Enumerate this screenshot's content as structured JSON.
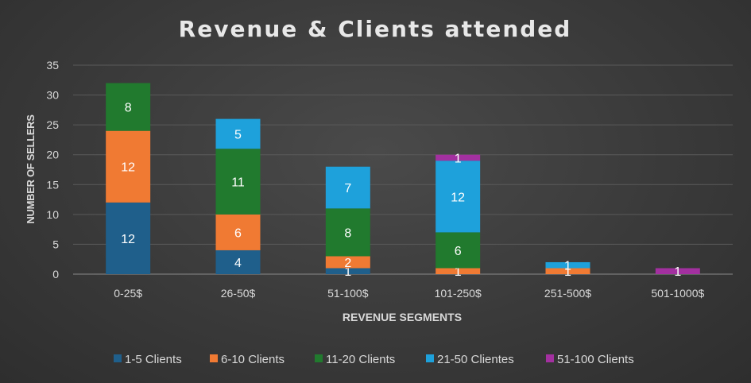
{
  "chart_data": {
    "type": "bar",
    "stacked": true,
    "title": "Revenue & Clients attended",
    "xlabel": "REVENUE SEGMENTS",
    "ylabel": "NUMBER OF SELLERS",
    "ylim": [
      0,
      35
    ],
    "yticks": [
      0,
      5,
      10,
      15,
      20,
      25,
      30,
      35
    ],
    "grid": true,
    "legend_position": "bottom",
    "categories": [
      "0-25$",
      "26-50$",
      "51-100$",
      "101-250$",
      "251-500$",
      "501-1000$"
    ],
    "series": [
      {
        "name": "1-5 Clients",
        "color": "#1f5f8b",
        "values": [
          12,
          4,
          1,
          0,
          0,
          0
        ]
      },
      {
        "name": "6-10 Clients",
        "color": "#f07a33",
        "values": [
          12,
          6,
          2,
          1,
          1,
          0
        ]
      },
      {
        "name": "11-20 Clients",
        "color": "#217a2e",
        "values": [
          8,
          11,
          8,
          6,
          0,
          0
        ]
      },
      {
        "name": "21-50 Clientes",
        "color": "#1ea1db",
        "values": [
          0,
          5,
          7,
          12,
          1,
          0
        ]
      },
      {
        "name": "51-100 Clients",
        "color": "#a330a0",
        "values": [
          0,
          0,
          0,
          1,
          0,
          1
        ]
      }
    ]
  }
}
